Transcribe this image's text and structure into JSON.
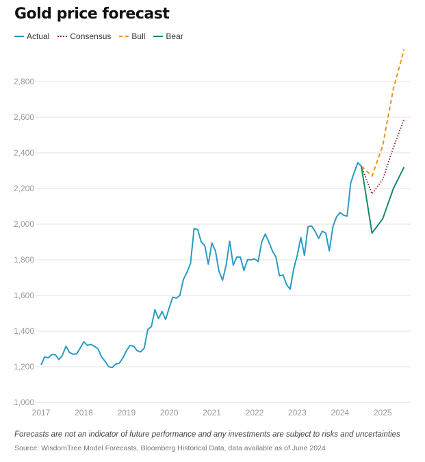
{
  "chart_data": {
    "type": "line",
    "title": "Gold price forecast",
    "xlabel": "",
    "ylabel": "",
    "ylim": [
      1000,
      3000
    ],
    "yticks": [
      1000,
      1200,
      1400,
      1600,
      1800,
      2000,
      2200,
      2400,
      2600,
      2800
    ],
    "ytick_labels": [
      "1,000",
      "1,200",
      "1,400",
      "1,600",
      "1,800",
      "2,000",
      "2,200",
      "2,400",
      "2,600",
      "2,800"
    ],
    "xticks": [
      "2017",
      "2018",
      "2019",
      "2020",
      "2021",
      "2022",
      "2023",
      "2024",
      "2025"
    ],
    "grid": true,
    "legend_placement": "top-left",
    "series": [
      {
        "name": "Actual",
        "color": "#2a9bc2",
        "style": "solid",
        "start": "2017-01",
        "frequency": "monthly",
        "values": [
          1210,
          1255,
          1250,
          1268,
          1268,
          1240,
          1265,
          1315,
          1280,
          1270,
          1272,
          1305,
          1340,
          1320,
          1325,
          1315,
          1300,
          1255,
          1230,
          1200,
          1195,
          1215,
          1220,
          1250,
          1290,
          1320,
          1315,
          1290,
          1283,
          1305,
          1410,
          1425,
          1520,
          1470,
          1510,
          1465,
          1530,
          1590,
          1585,
          1600,
          1690,
          1730,
          1780,
          1975,
          1970,
          1900,
          1880,
          1775,
          1895,
          1850,
          1735,
          1685,
          1770,
          1905,
          1770,
          1815,
          1815,
          1740,
          1800,
          1800,
          1805,
          1790,
          1900,
          1945,
          1900,
          1850,
          1815,
          1710,
          1715,
          1660,
          1635,
          1750,
          1825,
          1925,
          1825,
          1985,
          1990,
          1960,
          1920,
          1960,
          1950,
          1850,
          1985,
          2040,
          2065,
          2050,
          2045,
          2230,
          2290,
          2345,
          2325
        ]
      },
      {
        "name": "Consensus",
        "color": "#9b1c1c",
        "style": "dotted",
        "dates": [
          "2024-07",
          "2024-10",
          "2025-01",
          "2025-04",
          "2025-07"
        ],
        "values": [
          2325,
          2170,
          2250,
          2430,
          2590
        ]
      },
      {
        "name": "Bull",
        "color": "#e8941c",
        "style": "dashed",
        "dates": [
          "2024-07",
          "2024-10",
          "2025-01",
          "2025-04",
          "2025-07"
        ],
        "values": [
          2325,
          2270,
          2440,
          2760,
          2980
        ]
      },
      {
        "name": "Bear",
        "color": "#0e8a70",
        "style": "solid",
        "dates": [
          "2024-07",
          "2024-10",
          "2025-01",
          "2025-04",
          "2025-07"
        ],
        "values": [
          2325,
          1950,
          2030,
          2200,
          2320
        ]
      }
    ]
  },
  "footnote": "Forecasts are not an indicator of future performance and any investments are subject to risks and uncertainties",
  "source": "Source: WisdomTree Model Forecasts, Bloomberg Historical Data, data available as of June 2024"
}
